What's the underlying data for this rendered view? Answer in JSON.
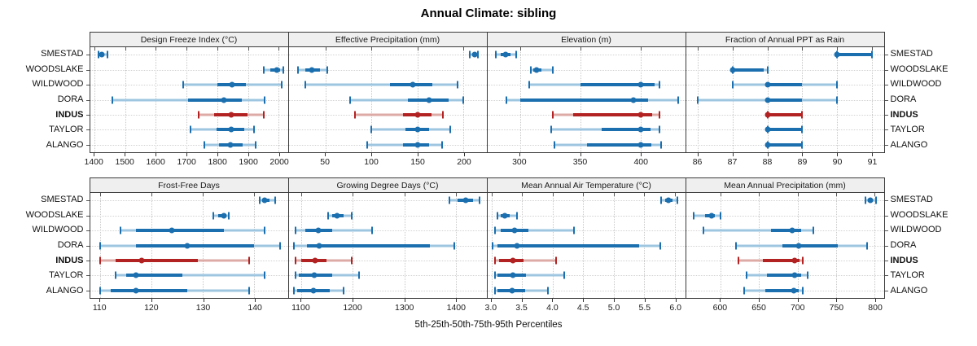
{
  "title": "Annual Climate: sibling",
  "xlabel": "5th-25th-50th-75th-95th Percentiles",
  "colors": {
    "normal": "#1b6fae",
    "normal_light": "#9ec6e0",
    "highlight": "#b22222",
    "highlight_light": "#ddaaa6",
    "strip_bg": "#efefef",
    "grid": "#c9c9c9"
  },
  "chart_data": {
    "type": "dotplot-percentiles",
    "percentile_levels": [
      5,
      25,
      50,
      75,
      95
    ],
    "stations": [
      "SMESTAD",
      "WOODSLAKE",
      "WILDWOOD",
      "DORA",
      "INDUS",
      "TAYLOR",
      "ALANGO"
    ],
    "highlight_station": "INDUS",
    "panels": [
      {
        "title": "Design Freeze Index (°C)",
        "xlim": [
          1385,
          2030
        ],
        "ticks": [
          1400,
          1500,
          1600,
          1700,
          1800,
          1900,
          2000
        ],
        "tick_labels": [
          "1400",
          "1500",
          "1600",
          "1700",
          "1800",
          "1900",
          "2000"
        ],
        "values": [
          [
            1413,
            1418,
            1424,
            1430,
            1441
          ],
          [
            1953,
            1972,
            1994,
            2006,
            2016
          ],
          [
            1688,
            1800,
            1848,
            1892,
            2010
          ],
          [
            1458,
            1705,
            1822,
            1880,
            1955
          ],
          [
            1740,
            1790,
            1845,
            1898,
            1952
          ],
          [
            1713,
            1798,
            1845,
            1888,
            1921
          ],
          [
            1758,
            1806,
            1843,
            1884,
            1924
          ]
        ]
      },
      {
        "title": "Effective Precipitation (mm)",
        "xlim": [
          10,
          225
        ],
        "ticks": [
          50,
          100,
          150,
          200
        ],
        "tick_labels": [
          "50",
          "100",
          "150",
          "200"
        ],
        "values": [
          [
            207,
            210,
            212,
            214,
            216
          ],
          [
            20,
            28,
            35,
            44,
            52
          ],
          [
            28,
            120,
            145,
            166,
            194
          ],
          [
            77,
            140,
            163,
            184,
            200
          ],
          [
            82,
            134,
            150,
            165,
            178
          ],
          [
            100,
            137,
            150,
            163,
            186
          ],
          [
            95,
            134,
            150,
            163,
            177
          ]
        ]
      },
      {
        "title": "Elevation (m)",
        "xlim": [
          273,
          437
        ],
        "ticks": [
          300,
          350,
          400
        ],
        "tick_labels": [
          "300",
          "350",
          "400"
        ],
        "values": [
          [
            280,
            284,
            288,
            292,
            297
          ],
          [
            309,
            311,
            314,
            318,
            327
          ],
          [
            308,
            350,
            400,
            412,
            416
          ],
          [
            289,
            300,
            394,
            406,
            431
          ],
          [
            327,
            344,
            400,
            410,
            416
          ],
          [
            326,
            368,
            400,
            408,
            416
          ],
          [
            329,
            356,
            400,
            409,
            417
          ]
        ]
      },
      {
        "title": "Fraction of Annual PPT as Rain",
        "xlim": [
          85.65,
          91.35
        ],
        "ticks": [
          86,
          87,
          88,
          89,
          90,
          91
        ],
        "tick_labels": [
          "86",
          "87",
          "88",
          "89",
          "90",
          "91"
        ],
        "values": [
          [
            90,
            90,
            90,
            91,
            91
          ],
          [
            87,
            87,
            87,
            87.9,
            88
          ],
          [
            87,
            88,
            88,
            89,
            90
          ],
          [
            86,
            88,
            88,
            89,
            90
          ],
          [
            88,
            88,
            88,
            89,
            89
          ],
          [
            88,
            88,
            88,
            89,
            89
          ],
          [
            88,
            88,
            88,
            89,
            89
          ]
        ]
      },
      {
        "title": "Frost-Free Days",
        "xlim": [
          108,
          146.5
        ],
        "ticks": [
          110,
          120,
          130,
          140
        ],
        "tick_labels": [
          "110",
          "120",
          "130",
          "140"
        ],
        "values": [
          [
            141,
            141.5,
            142,
            143,
            144
          ],
          [
            132,
            133,
            134,
            134.5,
            135
          ],
          [
            114,
            117,
            124,
            134,
            142
          ],
          [
            110,
            117,
            127,
            140,
            145
          ],
          [
            110,
            113,
            118,
            129,
            139
          ],
          [
            113,
            115,
            117,
            126,
            142
          ],
          [
            110,
            112,
            117,
            127,
            139
          ]
        ]
      },
      {
        "title": "Growing Degree Days (°C)",
        "xlim": [
          1075,
          1460
        ],
        "ticks": [
          1100,
          1200,
          1300,
          1400
        ],
        "tick_labels": [
          "1100",
          "1200",
          "1300",
          "1400"
        ],
        "values": [
          [
            1388,
            1404,
            1420,
            1434,
            1446
          ],
          [
            1152,
            1160,
            1170,
            1182,
            1198
          ],
          [
            1088,
            1108,
            1133,
            1160,
            1238
          ],
          [
            1085,
            1110,
            1135,
            1350,
            1398
          ],
          [
            1088,
            1100,
            1127,
            1148,
            1198
          ],
          [
            1088,
            1095,
            1125,
            1160,
            1212
          ],
          [
            1085,
            1092,
            1123,
            1155,
            1182
          ]
        ]
      },
      {
        "title": "Mean Annual Air Temperature (°C)",
        "xlim": [
          2.93,
          6.17
        ],
        "ticks": [
          3.0,
          3.5,
          4.0,
          4.5,
          5.0,
          5.5,
          6.0
        ],
        "tick_labels": [
          "3.0",
          "3.5",
          "4.0",
          "4.5",
          "5.0",
          "5.5",
          "6.0"
        ],
        "values": [
          [
            5.78,
            5.84,
            5.9,
            5.96,
            6.04
          ],
          [
            3.1,
            3.15,
            3.22,
            3.3,
            3.42
          ],
          [
            3.06,
            3.15,
            3.37,
            3.6,
            4.35
          ],
          [
            3.02,
            3.1,
            3.41,
            5.42,
            5.76
          ],
          [
            3.05,
            3.12,
            3.35,
            3.52,
            4.05
          ],
          [
            3.05,
            3.1,
            3.35,
            3.56,
            4.19
          ],
          [
            3.05,
            3.1,
            3.34,
            3.55,
            3.92
          ]
        ]
      },
      {
        "title": "Mean Annual Precipitation (mm)",
        "xlim": [
          555,
          812
        ],
        "ticks": [
          600,
          650,
          700,
          750,
          800
        ],
        "tick_labels": [
          "600",
          "650",
          "700",
          "750",
          "800"
        ],
        "values": [
          [
            788,
            791,
            795,
            798,
            802
          ],
          [
            565,
            580,
            588,
            593,
            600
          ],
          [
            578,
            665,
            693,
            705,
            720
          ],
          [
            620,
            680,
            701,
            752,
            790
          ],
          [
            623,
            655,
            696,
            703,
            707
          ],
          [
            634,
            660,
            696,
            705,
            713
          ],
          [
            631,
            658,
            695,
            702,
            707
          ]
        ]
      }
    ]
  }
}
